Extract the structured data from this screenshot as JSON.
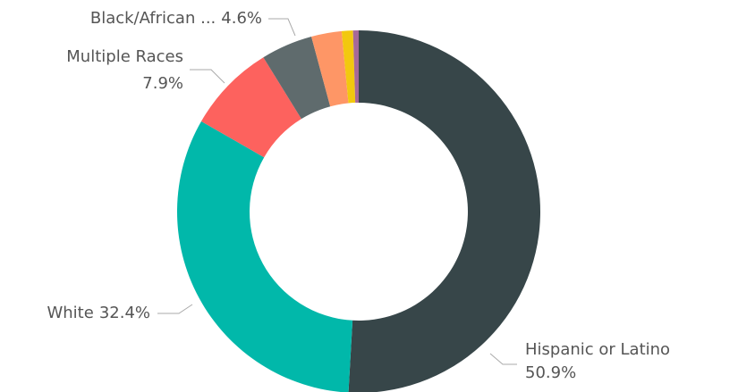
{
  "chart_data": {
    "type": "donut",
    "categories": [
      "Hispanic or Latino",
      "White",
      "Multiple Races",
      "Black/African ...",
      null,
      null,
      null
    ],
    "values": [
      50.9,
      32.4,
      7.9,
      4.6,
      2.7,
      1.0,
      0.5
    ],
    "value_labels": [
      "50.9%",
      "32.4%",
      "7.9%",
      "4.6%",
      null,
      null,
      null
    ],
    "colors": [
      "#374649",
      "#01B8AA",
      "#FD625E",
      "#5F6B6D",
      "#FE9666",
      "#F2C80F",
      "#A66999"
    ]
  }
}
